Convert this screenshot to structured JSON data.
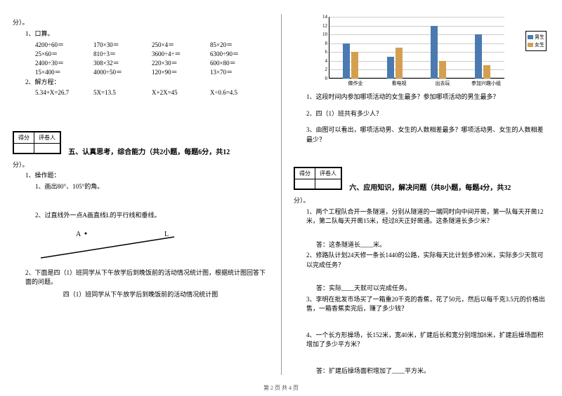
{
  "left": {
    "fen": "分）。",
    "q1": "1、口算。",
    "calc": [
      [
        "4200÷60＝",
        "170×30＝",
        "250×4＝",
        "85×20＝"
      ],
      [
        "25×60＝",
        "810÷3＝",
        "3600÷4÷＝",
        "6300÷90＝"
      ],
      [
        "2400÷30＝",
        "308×32＝",
        "220×30＝",
        "600×80＝"
      ],
      [
        "15×400＝",
        "4000÷50＝",
        "120×90＝",
        "13×70＝"
      ]
    ],
    "q2": "2、解方程：",
    "eq": [
      "5.34+X=26.7",
      "5X=13.5",
      "X+2X=45",
      "X÷0.6=4.5"
    ],
    "scoreHeader": [
      "得分",
      "评卷人"
    ],
    "sec5": "五、认真思考，综合能力（共2小题，每题6分，共12",
    "fen2": "分）。",
    "p1": "1、操作题：",
    "p1a": "1、画出80°、105°的角。",
    "p1b": "2、过直线外一点A画直线L的平行线和垂线。",
    "labelA": "A",
    "labelL": "L",
    "p2": "2、下面是四（1）班同学从下午放学后到晚饭前的活动情况统计图，根据统计图回答下面的问题。",
    "p2title": "四（1）班同学从下午放学后到晚饭前的活动情况统计图"
  },
  "right": {
    "chart": {
      "ymax": 14,
      "yticks": [
        0,
        2,
        4,
        6,
        8,
        10,
        12,
        14
      ],
      "categories": [
        "做作业",
        "看电视",
        "出去玩",
        "参加兴趣小组"
      ],
      "boys": [
        8,
        5,
        12,
        10
      ],
      "girls": [
        6,
        7,
        4,
        3
      ],
      "boyColor": "#4a7ab0",
      "girlColor": "#d4a050",
      "legend": [
        "男生",
        "女生"
      ]
    },
    "cq1": "1、这段时间内参加哪项活动的女生最多？参加哪项活动的男生最多？",
    "cq2": "2、四（1）班共有多少人？",
    "cq3": "3、由图可以看出，哪项活动男、女生的人数相差最多？哪项活动男、女生的人数相差最少？",
    "scoreHeader": [
      "得分",
      "评卷人"
    ],
    "sec6": "六、应用知识，解决问题（共8小题，每题4分，共32",
    "fen": "分）。",
    "q1": "1、两个工程队合开一条隧道，分别从隧道的一端同时向中间开凿，第一队每天开凿12米，第二队每天开凿15米，经过8天正好凿通。这条隧道长多少米？",
    "a1": "答：这条隧道长____米。",
    "q2": "2、修路队计划24天修一条长1440的公路，实际每天比计划多修20米，实际多少天就可以完成任务？",
    "a2": "答：实际____天就可以完成任务。",
    "q3": "3、李明在批发市场买了一箱重20千克的香蕉，花了50元，然后以每千克3.5元的价格出售，一箱香蕉卖完后，赚了多少钱？",
    "q4": "4、一个长方形操场，长152米，宽40米，扩建后长和宽分别增加8米，扩建后操场面积增加了多少平方米？",
    "a4": "答：扩建后操场面积增加了____平方米。"
  },
  "footer": "第 2 页 共 4 页"
}
